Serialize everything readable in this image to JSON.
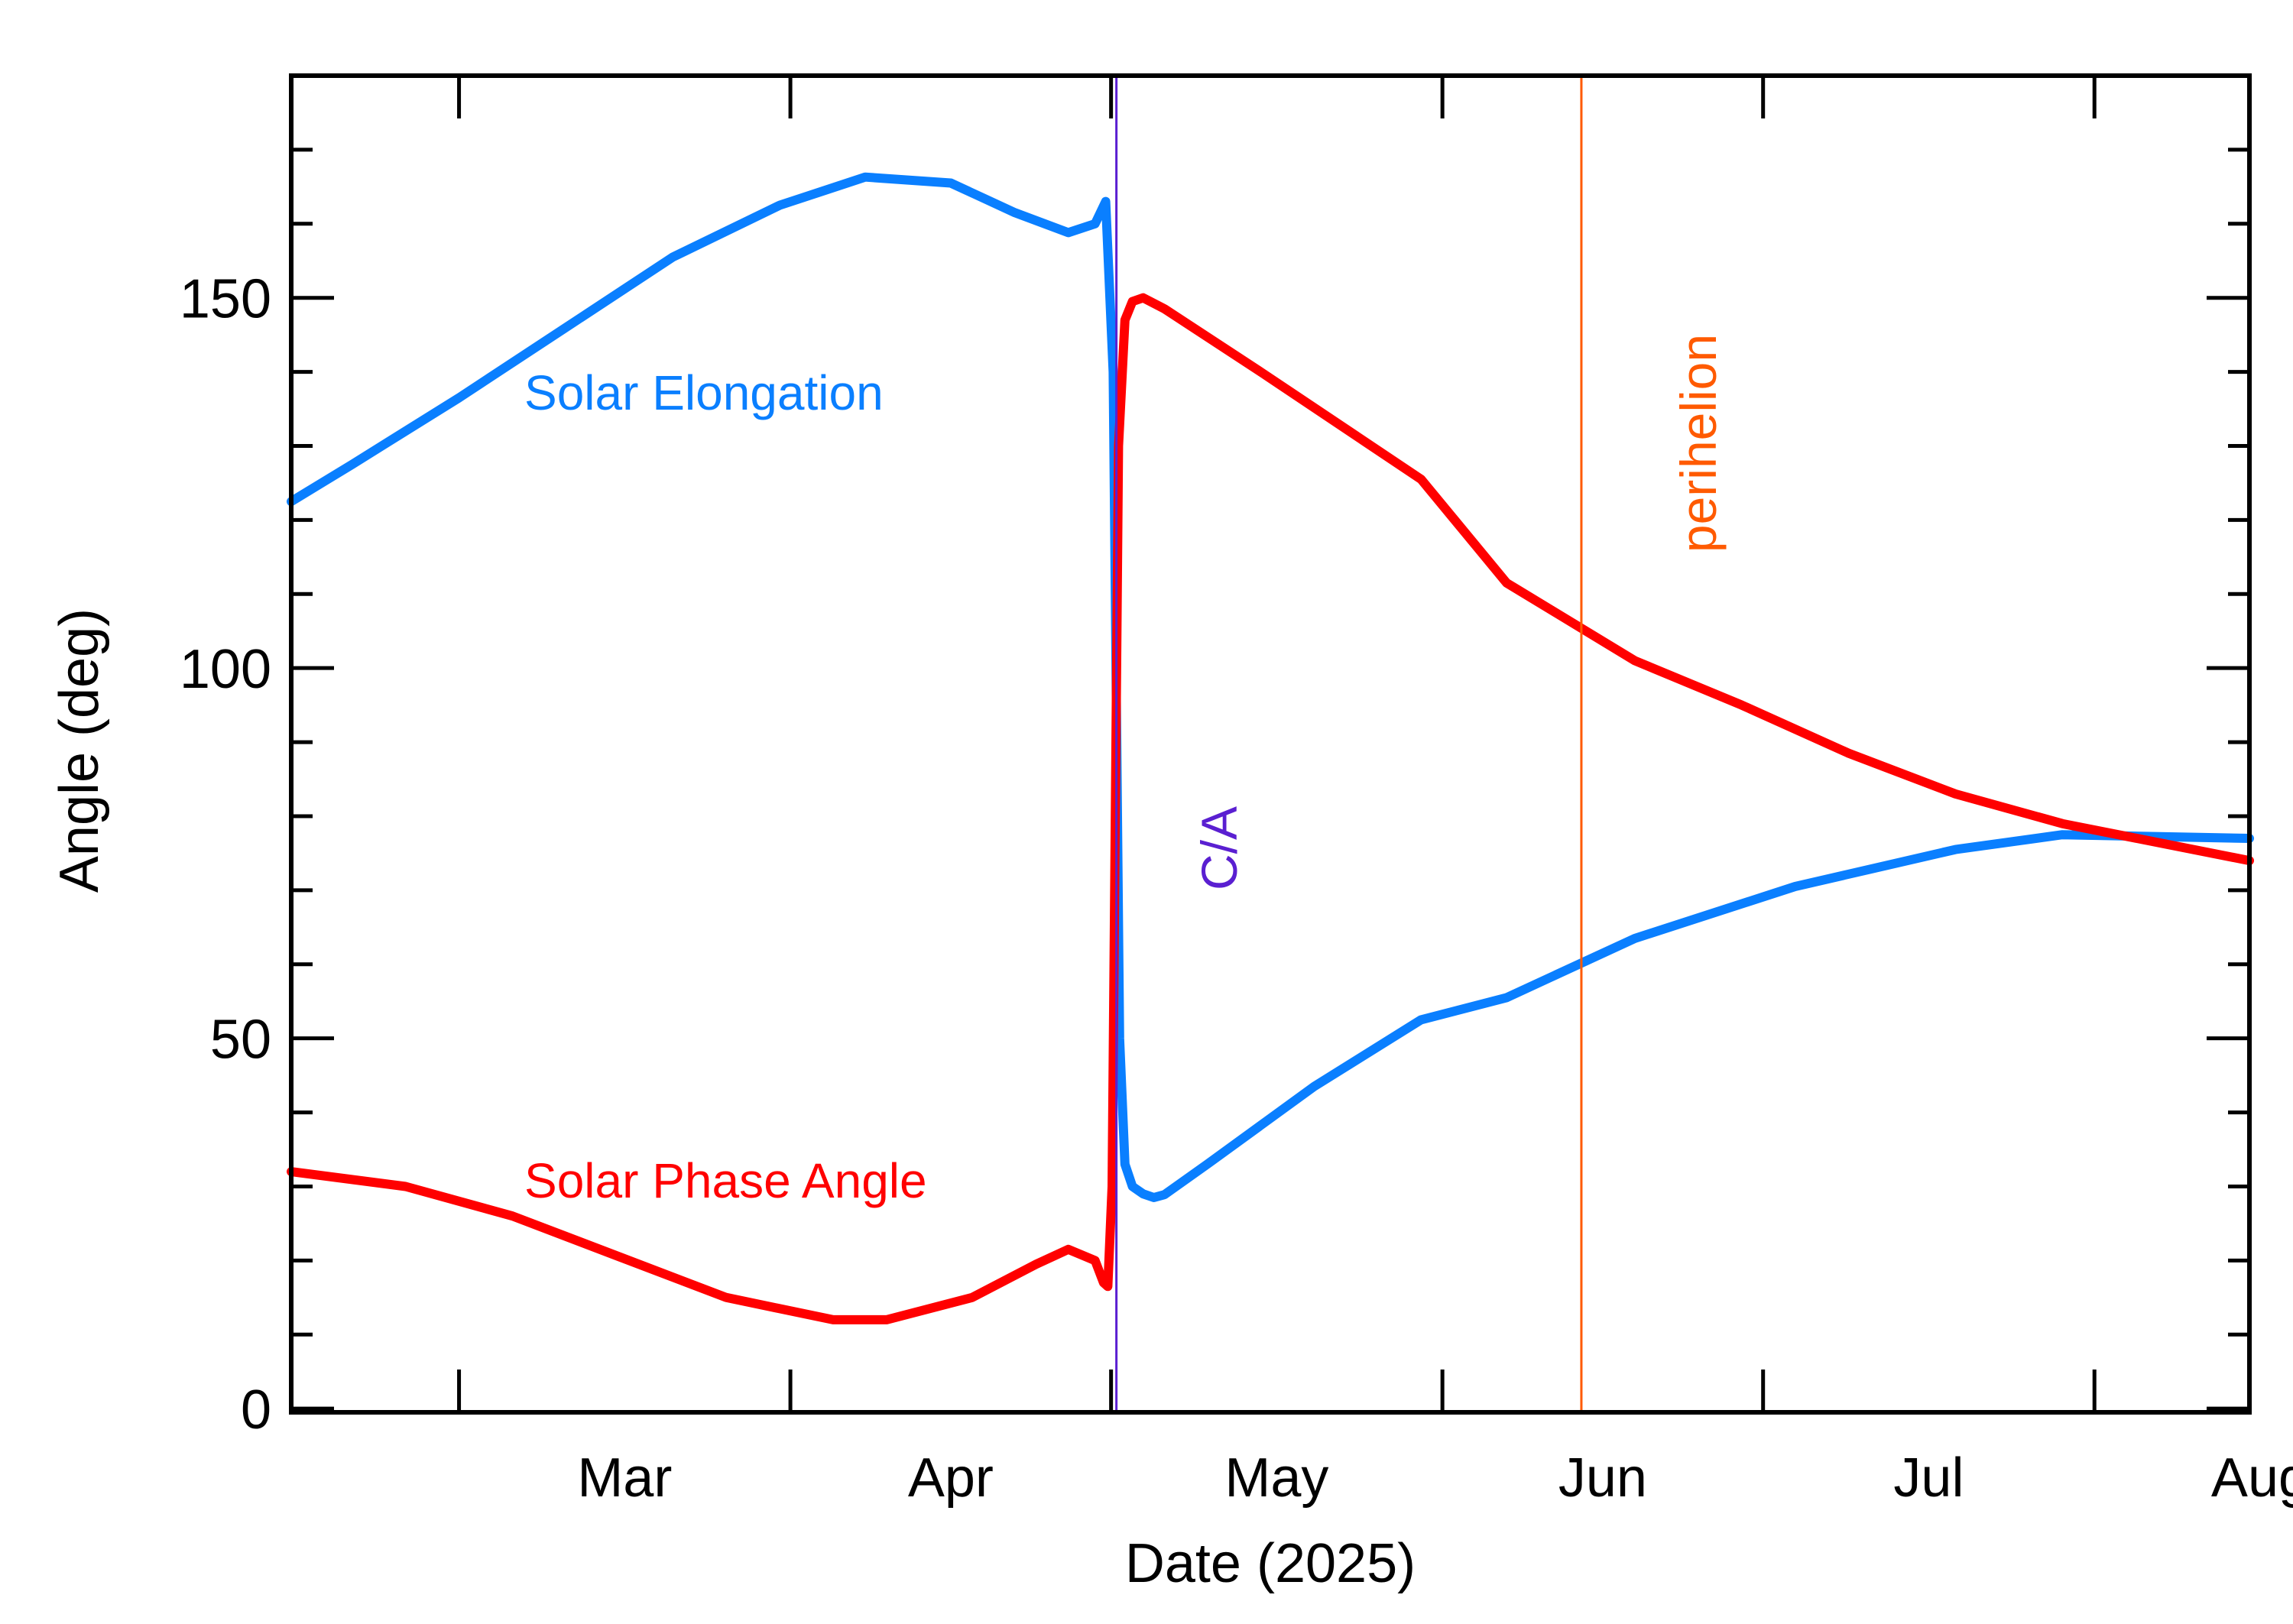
{
  "chart_data": {
    "type": "line",
    "xlabel": "Date (2025)",
    "ylabel": "Angle (deg)",
    "ylim": [
      -0.5,
      180
    ],
    "xlim_day_of_year": [
      44.3,
      227.5
    ],
    "yticks_major": [
      0,
      50,
      100,
      150
    ],
    "yticks_minor_step": 10,
    "xticks": [
      {
        "label": "Mar",
        "day": 60
      },
      {
        "label": "Apr",
        "day": 91
      },
      {
        "label": "May",
        "day": 121
      },
      {
        "label": "Jun",
        "day": 152
      },
      {
        "label": "Jul",
        "day": 182
      },
      {
        "label": "Aug",
        "day": 213
      }
    ],
    "series": [
      {
        "name": "Solar Elongation",
        "color": "#0a7fff",
        "points": [
          [
            44.3,
            122.5
          ],
          [
            50,
            127.5
          ],
          [
            60,
            136.5
          ],
          [
            70,
            146
          ],
          [
            80,
            155.5
          ],
          [
            90,
            162.5
          ],
          [
            98,
            166.3
          ],
          [
            106,
            165.5
          ],
          [
            112,
            161.5
          ],
          [
            117,
            158.8
          ],
          [
            119.5,
            160
          ],
          [
            120.5,
            163
          ],
          [
            121.2,
            140
          ],
          [
            121.5,
            95
          ],
          [
            121.8,
            50
          ],
          [
            122.3,
            33
          ],
          [
            123,
            30
          ],
          [
            124,
            29
          ],
          [
            125,
            28.5
          ],
          [
            126,
            28.9
          ],
          [
            130,
            33
          ],
          [
            140,
            43.5
          ],
          [
            150,
            52.5
          ],
          [
            158,
            55.5
          ],
          [
            170,
            63.5
          ],
          [
            185,
            70.5
          ],
          [
            200,
            75.5
          ],
          [
            210,
            77.5
          ],
          [
            227.5,
            77
          ]
        ]
      },
      {
        "name": "Solar Phase Angle",
        "color": "#ff0000",
        "points": [
          [
            44.3,
            32
          ],
          [
            55,
            30
          ],
          [
            65,
            26
          ],
          [
            75,
            20.5
          ],
          [
            85,
            15
          ],
          [
            95,
            12
          ],
          [
            100,
            12
          ],
          [
            108,
            15
          ],
          [
            114,
            19.5
          ],
          [
            117,
            21.5
          ],
          [
            119.5,
            20
          ],
          [
            120.3,
            17
          ],
          [
            120.7,
            16.5
          ],
          [
            121.1,
            30
          ],
          [
            121.4,
            80
          ],
          [
            121.7,
            130
          ],
          [
            122.3,
            147
          ],
          [
            123,
            149.5
          ],
          [
            124,
            150
          ],
          [
            126,
            148.5
          ],
          [
            135,
            140
          ],
          [
            150,
            125.5
          ],
          [
            158,
            111.5
          ],
          [
            170,
            101
          ],
          [
            180,
            95
          ],
          [
            190,
            88.5
          ],
          [
            200,
            83
          ],
          [
            210,
            79
          ],
          [
            227.5,
            74
          ]
        ]
      }
    ],
    "vertical_markers": [
      {
        "label": "C/A",
        "day": 121.5,
        "color": "#5a1fd1"
      },
      {
        "label": "perihelion",
        "day": 165,
        "color": "#ff5a00"
      }
    ],
    "annotations": [
      {
        "text": "Solar Elongation",
        "color": "#0a7fff",
        "anchor_day": 65,
        "anchor_value": 137
      },
      {
        "text": "Solar Phase Angle",
        "color": "#ff0000",
        "anchor_day": 65,
        "anchor_value": 31
      }
    ]
  }
}
